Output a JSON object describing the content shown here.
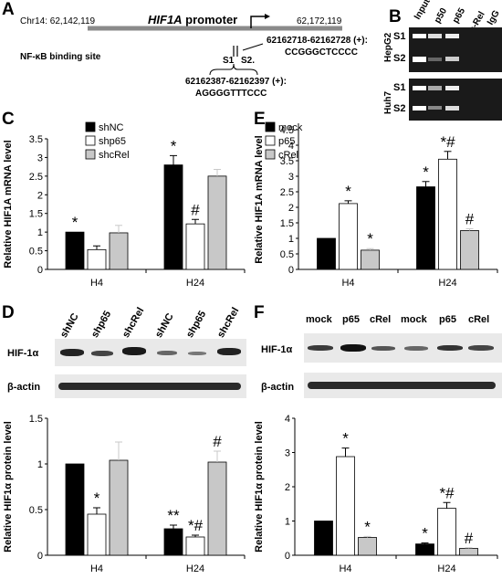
{
  "panel_letters": {
    "A": "A",
    "B": "B",
    "C": "C",
    "D": "D",
    "E": "E",
    "F": "F"
  },
  "panelA": {
    "chr_left": "Chr14: 62,142,119",
    "chr_right": "62,172,119",
    "promoter_gene": "HIF1A",
    "promoter_suffix": " promoter",
    "nfkb_label": "NF-κB binding site",
    "s1": "S1",
    "s2": "S2.",
    "site1_coord": "62162387-62162397 (+):",
    "site1_seq": "AGGGGTTTCCC",
    "site2_coord": "62162718-62162728 (+):",
    "site2_seq": "CCGGGCTCCCC"
  },
  "panelB": {
    "columns": [
      "Input",
      "p50",
      "p65",
      "c-Rel",
      "IgG"
    ],
    "cell_lines": [
      "HepG2",
      "Huh7"
    ],
    "rows": [
      "S1",
      "S2",
      "S1",
      "S2"
    ]
  },
  "panelD_blot": {
    "lanes": [
      "shNC",
      "shp65",
      "shcRel",
      "shNC",
      "shp65",
      "shcRel"
    ],
    "rows": [
      "HIF-1α",
      "β-actin"
    ]
  },
  "panelF_blot": {
    "lanes": [
      "mock",
      "p65",
      "cRel",
      "mock",
      "p65",
      "cRel"
    ],
    "rows": [
      "HIF-1α",
      "β-actin"
    ]
  },
  "colors": {
    "black": "#000000",
    "white": "#ffffff",
    "grey": "#c8c8c8"
  },
  "chart_data": [
    {
      "id": "C",
      "type": "bar",
      "ylabel": "Relative HIF1A mRNA level",
      "categories": [
        "H4",
        "H24"
      ],
      "ylim": [
        0,
        3.5
      ],
      "yticks": [
        "0",
        "0.5",
        "1",
        "1.5",
        "2",
        "2.5",
        "3",
        "3.5"
      ],
      "series": [
        {
          "name": "shNC",
          "color": "#000000",
          "values": [
            1.0,
            2.8
          ],
          "err": [
            0,
            0.25
          ]
        },
        {
          "name": "shp65",
          "color": "#ffffff",
          "values": [
            0.53,
            1.22
          ],
          "err": [
            0.1,
            0.12
          ]
        },
        {
          "name": "shcRel",
          "color": "#c8c8c8",
          "values": [
            0.98,
            2.5
          ],
          "err": [
            0.2,
            0.18
          ]
        }
      ],
      "annotations": [
        [
          "*",
          "",
          ""
        ],
        [
          "*",
          "#",
          ""
        ]
      ]
    },
    {
      "id": "E",
      "type": "bar",
      "ylabel": "Relative HIF1A mRNA level",
      "categories": [
        "H4",
        "H24"
      ],
      "ylim": [
        0,
        4.5
      ],
      "yticks": [
        "0",
        "0.5",
        "1",
        "1.5",
        "2",
        "2.5",
        "3",
        "3.5",
        "4",
        "4.5"
      ],
      "series": [
        {
          "name": "mock",
          "color": "#000000",
          "values": [
            1.0,
            2.66
          ],
          "err": [
            0,
            0.17
          ]
        },
        {
          "name": "p65",
          "color": "#ffffff",
          "values": [
            2.12,
            3.55
          ],
          "err": [
            0.09,
            0.25
          ]
        },
        {
          "name": "cRel",
          "color": "#c8c8c8",
          "values": [
            0.62,
            1.25
          ],
          "err": [
            0.05,
            0.06
          ]
        }
      ],
      "annotations": [
        [
          "",
          "*",
          "*"
        ],
        [
          "*",
          "*#",
          "#"
        ]
      ]
    },
    {
      "id": "D",
      "type": "bar",
      "ylabel": "Relative HIF1α protein level",
      "categories": [
        "H4",
        "H24"
      ],
      "ylim": [
        0,
        1.5
      ],
      "yticks": [
        "0",
        "0.5",
        "1",
        "1.5"
      ],
      "series": [
        {
          "name": "shNC",
          "color": "#000000",
          "values": [
            1.0,
            0.29
          ],
          "err": [
            0,
            0.04
          ]
        },
        {
          "name": "shp65",
          "color": "#ffffff",
          "values": [
            0.45,
            0.2
          ],
          "err": [
            0.07,
            0.02
          ]
        },
        {
          "name": "shcRel",
          "color": "#c8c8c8",
          "values": [
            1.04,
            1.02
          ],
          "err": [
            0.2,
            0.12
          ]
        }
      ],
      "annotations": [
        [
          "",
          "*",
          ""
        ],
        [
          "**",
          "*#",
          "#"
        ]
      ]
    },
    {
      "id": "F",
      "type": "bar",
      "ylabel": "Relative HIF1α protein level",
      "categories": [
        "H4",
        "H24"
      ],
      "ylim": [
        0,
        4
      ],
      "yticks": [
        "0",
        "1",
        "2",
        "3",
        "4"
      ],
      "series": [
        {
          "name": "mock",
          "color": "#000000",
          "values": [
            1.0,
            0.33
          ],
          "err": [
            0,
            0.03
          ]
        },
        {
          "name": "p65",
          "color": "#ffffff",
          "values": [
            2.88,
            1.37
          ],
          "err": [
            0.25,
            0.17
          ]
        },
        {
          "name": "cRel",
          "color": "#c8c8c8",
          "values": [
            0.52,
            0.2
          ],
          "err": [
            0.03,
            0.02
          ]
        }
      ],
      "annotations": [
        [
          "",
          "*",
          "*"
        ],
        [
          "*",
          "*#",
          "#"
        ]
      ]
    }
  ]
}
